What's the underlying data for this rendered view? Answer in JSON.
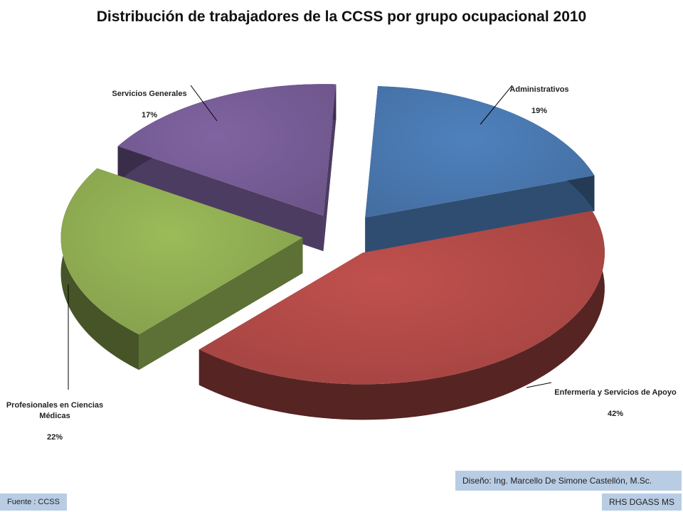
{
  "chart_data": {
    "type": "pie",
    "title": "Distribución de trabajadores de la CCSS por grupo ocupacional 2010",
    "slices": [
      {
        "label": "Administrativos",
        "value": 19,
        "display": "19%",
        "color": "#4f81bd"
      },
      {
        "label": "Enfermería y Servicios de Apoyo",
        "value": 42,
        "display": "42%",
        "color": "#c0504d"
      },
      {
        "label": "Profesionales en Ciencias\nMédicas",
        "value": 22,
        "display": "22%",
        "color": "#9bbb59"
      },
      {
        "label": "Servicios Generales",
        "value": 17,
        "display": "17%",
        "color": "#8064a2"
      }
    ],
    "legend": "none",
    "style": "3d-exploded"
  },
  "footer": {
    "design": "Diseño: Ing. Marcello De Simone Castellón, M.Sc.",
    "source": "Fuente : CCSS",
    "org": "RHS DGASS MS"
  }
}
